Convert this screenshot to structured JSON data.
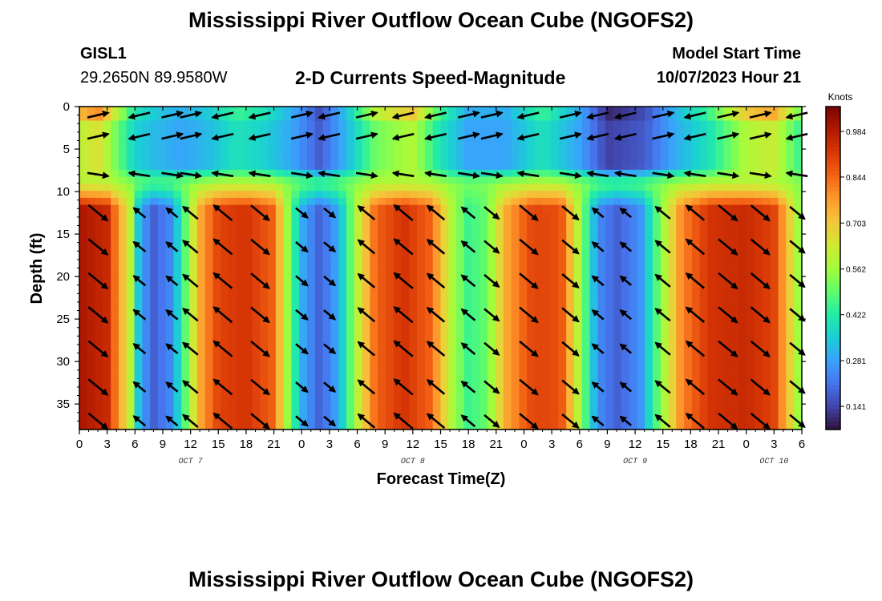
{
  "header": {
    "title": "Mississippi River Outflow Ocean Cube (NGOFS2)",
    "station": "GISL1",
    "coords": "29.2650N  89.9580W",
    "subtitle": "2-D Currents Speed-Magnitude",
    "model_start_label": "Model Start Time",
    "model_start_value": "10/07/2023 Hour 21"
  },
  "footer": {
    "title": "Mississippi River Outflow Ocean Cube (NGOFS2)"
  },
  "chart_data": {
    "type": "heatmap",
    "title": "2-D Currents Speed-Magnitude",
    "xlabel": "Forecast Time(Z)",
    "ylabel": "Depth (ft)",
    "x_ticks": [
      "0",
      "3",
      "6",
      "9",
      "12",
      "15",
      "18",
      "21",
      "0",
      "3",
      "6",
      "9",
      "12",
      "15",
      "18",
      "21",
      "0",
      "3",
      "6",
      "9",
      "12",
      "15",
      "18",
      "21",
      "0",
      "3",
      "6"
    ],
    "x_range_hours": [
      0,
      78
    ],
    "date_labels": [
      {
        "text": "OCT 7",
        "hour": 12
      },
      {
        "text": "OCT 8",
        "hour": 36
      },
      {
        "text": "OCT 9",
        "hour": 60
      },
      {
        "text": "OCT 10",
        "hour": 75
      }
    ],
    "y_ticks": [
      0,
      5,
      10,
      15,
      20,
      25,
      30,
      35
    ],
    "ylim": [
      0,
      38
    ],
    "y_inverted": true,
    "colorbar": {
      "unit": "Knots",
      "ticks": [
        "0.984",
        "0.844",
        "0.703",
        "0.562",
        "0.422",
        "0.281",
        "0.141"
      ],
      "tick_values": [
        0.984,
        0.844,
        0.703,
        0.562,
        0.422,
        0.281,
        0.141
      ],
      "range": [
        0.07,
        1.06
      ],
      "colors": [
        "#30123b",
        "#4145ab",
        "#4675ed",
        "#39a2fc",
        "#1bcfd4",
        "#24eca6",
        "#61fc6c",
        "#a4fc3b",
        "#d1e834",
        "#f3c63a",
        "#fe9b2d",
        "#f36315",
        "#d93806",
        "#b11901",
        "#7a0402"
      ]
    },
    "surface_speed_by_hour": [
      {
        "hour": 0,
        "speed": 0.72
      },
      {
        "hour": 2,
        "speed": 0.8
      },
      {
        "hour": 4,
        "speed": 0.6
      },
      {
        "hour": 6,
        "speed": 0.4
      },
      {
        "hour": 8,
        "speed": 0.35
      },
      {
        "hour": 11,
        "speed": 0.3
      },
      {
        "hour": 14,
        "speed": 0.35
      },
      {
        "hour": 17,
        "speed": 0.45
      },
      {
        "hour": 20,
        "speed": 0.4
      },
      {
        "hour": 23,
        "speed": 0.3
      },
      {
        "hour": 26,
        "speed": 0.15
      },
      {
        "hour": 29,
        "speed": 0.35
      },
      {
        "hour": 32,
        "speed": 0.6
      },
      {
        "hour": 36,
        "speed": 0.7
      },
      {
        "hour": 39,
        "speed": 0.45
      },
      {
        "hour": 42,
        "speed": 0.3
      },
      {
        "hour": 46,
        "speed": 0.3
      },
      {
        "hour": 50,
        "speed": 0.45
      },
      {
        "hour": 54,
        "speed": 0.3
      },
      {
        "hour": 57,
        "speed": 0.1
      },
      {
        "hour": 61,
        "speed": 0.15
      },
      {
        "hour": 64,
        "speed": 0.3
      },
      {
        "hour": 68,
        "speed": 0.45
      },
      {
        "hour": 72,
        "speed": 0.7
      },
      {
        "hour": 75,
        "speed": 0.75
      },
      {
        "hour": 78,
        "speed": 0.5
      }
    ],
    "deep_speed_by_hour": [
      {
        "hour": 0,
        "speed": 1.0
      },
      {
        "hour": 3,
        "speed": 0.95
      },
      {
        "hour": 5.5,
        "speed": 0.6
      },
      {
        "hour": 6.5,
        "speed": 0.3
      },
      {
        "hour": 8,
        "speed": 0.18
      },
      {
        "hour": 10,
        "speed": 0.25
      },
      {
        "hour": 11.5,
        "speed": 0.5
      },
      {
        "hour": 13,
        "speed": 0.75
      },
      {
        "hour": 15,
        "speed": 0.9
      },
      {
        "hour": 18,
        "speed": 0.93
      },
      {
        "hour": 21,
        "speed": 0.85
      },
      {
        "hour": 22.5,
        "speed": 0.55
      },
      {
        "hour": 24,
        "speed": 0.3
      },
      {
        "hour": 26,
        "speed": 0.18
      },
      {
        "hour": 28,
        "speed": 0.3
      },
      {
        "hour": 30,
        "speed": 0.6
      },
      {
        "hour": 32,
        "speed": 0.85
      },
      {
        "hour": 35,
        "speed": 0.93
      },
      {
        "hour": 38,
        "speed": 0.85
      },
      {
        "hour": 40,
        "speed": 0.6
      },
      {
        "hour": 42,
        "speed": 0.45
      },
      {
        "hour": 44,
        "speed": 0.5
      },
      {
        "hour": 46,
        "speed": 0.75
      },
      {
        "hour": 49,
        "speed": 0.9
      },
      {
        "hour": 52,
        "speed": 0.88
      },
      {
        "hour": 54.5,
        "speed": 0.5
      },
      {
        "hour": 56,
        "speed": 0.25
      },
      {
        "hour": 58,
        "speed": 0.18
      },
      {
        "hour": 60.5,
        "speed": 0.25
      },
      {
        "hour": 62.5,
        "speed": 0.5
      },
      {
        "hour": 65,
        "speed": 0.8
      },
      {
        "hour": 68,
        "speed": 0.93
      },
      {
        "hour": 72,
        "speed": 0.95
      },
      {
        "hour": 75,
        "speed": 0.9
      },
      {
        "hour": 77,
        "speed": 0.65
      },
      {
        "hour": 78,
        "speed": 0.5
      }
    ],
    "arrow_hours": [
      2,
      6.5,
      10,
      12,
      15.5,
      19.5,
      24,
      27,
      31,
      35,
      38.5,
      42,
      44.5,
      48.5,
      53,
      56,
      59,
      63,
      66.5,
      70,
      73.5,
      77.5
    ],
    "arrow_depths_ft": [
      1,
      3.5,
      8,
      12.5,
      16.5,
      20.5,
      24.5,
      28.5,
      33,
      37
    ]
  }
}
